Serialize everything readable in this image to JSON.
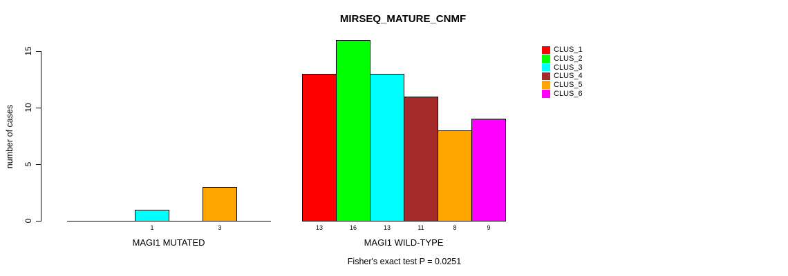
{
  "chart_data": {
    "type": "bar",
    "title": "MIRSEQ_MATURE_CNMF",
    "ylabel": "number of cases",
    "xlabel": "",
    "ylim": [
      0,
      16
    ],
    "yticks": [
      0,
      5,
      10,
      15
    ],
    "grid": false,
    "legend_position": "right",
    "clusters": [
      "CLUS_1",
      "CLUS_2",
      "CLUS_3",
      "CLUS_4",
      "CLUS_5",
      "CLUS_6"
    ],
    "cluster_colors": [
      "#ff0000",
      "#00ff00",
      "#00ffff",
      "#a52a2a",
      "#ffa500",
      "#ff00ff"
    ],
    "groups": [
      {
        "label": "MAGI1 MUTATED",
        "values": [
          0,
          0,
          1,
          0,
          3,
          0
        ]
      },
      {
        "label": "MAGI1 WILD-TYPE",
        "values": [
          13,
          16,
          13,
          11,
          8,
          9
        ]
      }
    ],
    "bar_value_labels": {
      "MAGI1 MUTATED": [
        "1",
        "3"
      ],
      "MAGI1 WILD-TYPE": [
        "13",
        "16",
        "13",
        "11",
        "8",
        "9"
      ]
    },
    "footnote": "Fisher's exact test P = 0.0251"
  }
}
